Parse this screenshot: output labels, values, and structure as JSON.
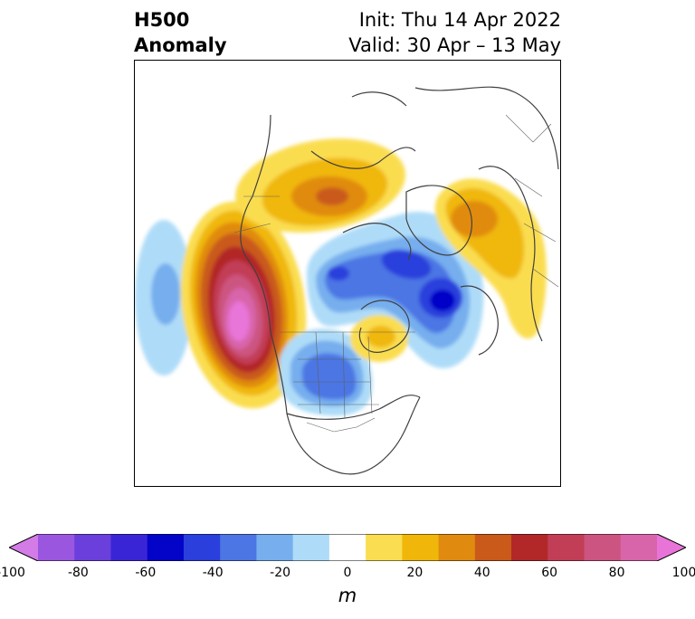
{
  "header": {
    "title_line1": "H500",
    "title_line2": "Anomaly",
    "init": "Init: Thu 14 Apr 2022",
    "valid": "Valid: 30 Apr – 13 May"
  },
  "map": {
    "field": "500 hPa geopotential height anomaly",
    "projection": "north polar stereographic",
    "features": [
      {
        "name": "ridge-northeast-pacific",
        "value": 100
      },
      {
        "name": "trough-central-pacific",
        "value": -40
      },
      {
        "name": "ridge-alaska-yukon",
        "value": 50
      },
      {
        "name": "trough-arctic-canada",
        "value": -60
      },
      {
        "name": "trough-central-north-america",
        "value": -40
      },
      {
        "name": "ridge-hudson-bay",
        "value": 30
      },
      {
        "name": "trough-greenland-scandinavia",
        "value": -70
      },
      {
        "name": "ridge-eurasia",
        "value": 40
      }
    ]
  },
  "colorbar": {
    "unit": "m",
    "levels": [
      -100,
      -90,
      -80,
      -70,
      -60,
      -50,
      -40,
      -30,
      -20,
      -10,
      10,
      20,
      30,
      40,
      50,
      60,
      70,
      80,
      90,
      100
    ],
    "ticks": [
      "-100",
      "-80",
      "-60",
      "-40",
      "-20",
      "0",
      "20",
      "40",
      "60",
      "80",
      "100"
    ],
    "colors": [
      "#d37be6",
      "#9b56e0",
      "#6b3fdc",
      "#3a25d6",
      "#0404c8",
      "#2a3fdc",
      "#4c76e4",
      "#76aeee",
      "#aedcf8",
      "#ffffff",
      "#fadd50",
      "#f0b70a",
      "#e08b10",
      "#c95a1a",
      "#b22828",
      "#c23e56",
      "#cc5480",
      "#d865aa",
      "#e874d8"
    ],
    "extend": "both"
  }
}
